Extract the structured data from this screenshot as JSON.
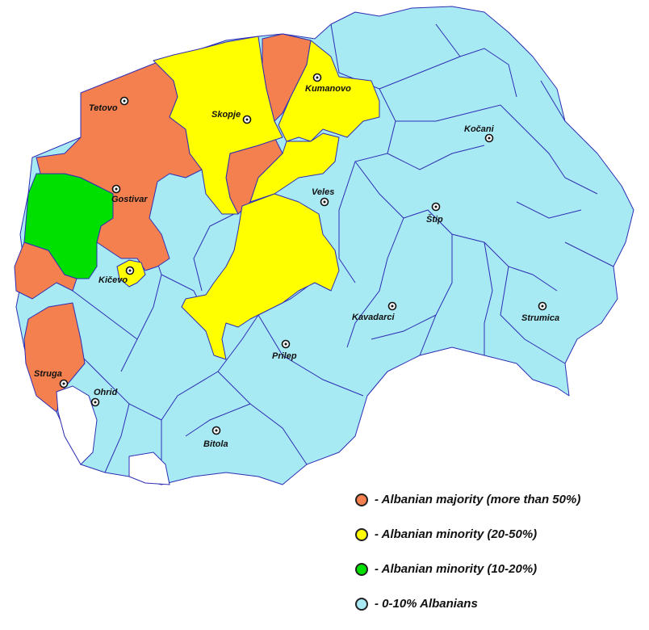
{
  "colors": {
    "majority": "#f5804f",
    "minority_20_50": "#ffff00",
    "minority_10_20": "#00e000",
    "low": "#a8eaf4",
    "border": "#2d2db4"
  },
  "cities": [
    {
      "name": "Tetovo"
    },
    {
      "name": "Skopje"
    },
    {
      "name": "Kumanovo"
    },
    {
      "name": "Kočani"
    },
    {
      "name": "Gostivar"
    },
    {
      "name": "Veles"
    },
    {
      "name": "Štip"
    },
    {
      "name": "Kičevo"
    },
    {
      "name": "Kavadarci"
    },
    {
      "name": "Strumica"
    },
    {
      "name": "Prilep"
    },
    {
      "name": "Struga"
    },
    {
      "name": "Ohrid"
    },
    {
      "name": "Bitola"
    }
  ],
  "legend": [
    {
      "label": "- Albanian majority (more than 50%)",
      "swatch": "orange"
    },
    {
      "label": "- Albanian minority (20-50%)",
      "swatch": "yellow"
    },
    {
      "label": "- Albanian minority (10-20%)",
      "swatch": "green"
    },
    {
      "label": "- 0-10% Albanians",
      "swatch": "light-blue"
    }
  ]
}
